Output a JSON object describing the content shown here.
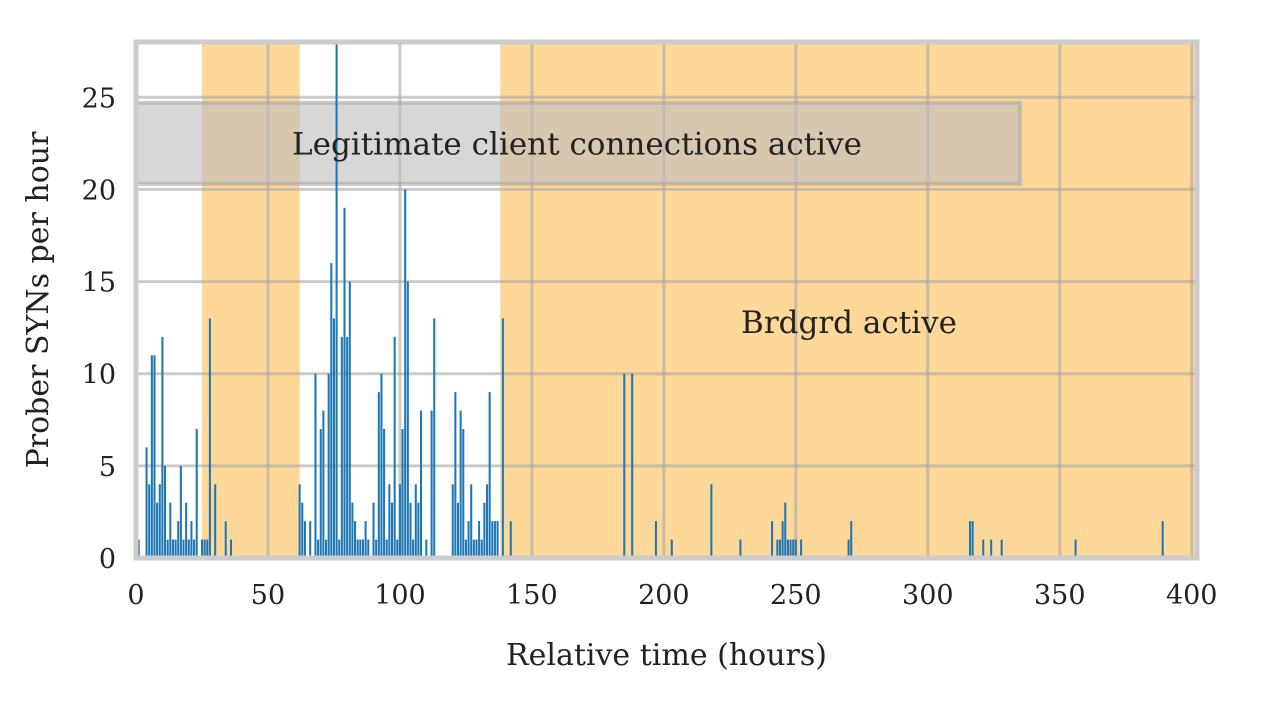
{
  "chart_data": {
    "type": "bar",
    "xlabel": "Relative time (hours)",
    "ylabel": "Prober SYNs per hour",
    "xlim": [
      0,
      402
    ],
    "ylim": [
      0,
      28
    ],
    "xticks": [
      0,
      50,
      100,
      150,
      200,
      250,
      300,
      350,
      400
    ],
    "yticks": [
      0,
      5,
      10,
      15,
      20,
      25
    ],
    "grid": true,
    "bar_color": "#1f77b4",
    "shade_color": "#fdb846",
    "legit_color": "#bdbdbd",
    "active_periods": [
      [
        25,
        62
      ],
      [
        138,
        402
      ]
    ],
    "legit_band": {
      "x": [
        0,
        335
      ],
      "y": [
        20.3,
        24.7
      ]
    },
    "annotations": {
      "legit": "Legitimate client connections active",
      "brdgrd": "Brdgrd active"
    },
    "x": [
      1,
      4,
      5,
      6,
      7,
      8,
      9,
      10,
      11,
      12,
      13,
      14,
      15,
      16,
      17,
      18,
      19,
      20,
      21,
      22,
      23,
      25,
      26,
      27,
      28,
      30,
      34,
      36,
      62,
      63,
      64,
      66,
      68,
      69,
      70,
      71,
      72,
      73,
      74,
      75,
      76,
      77,
      78,
      79,
      80,
      81,
      82,
      83,
      84,
      85,
      86,
      87,
      88,
      90,
      91,
      92,
      93,
      94,
      95,
      96,
      97,
      98,
      99,
      100,
      101,
      102,
      103,
      104,
      105,
      106,
      107,
      108,
      110,
      112,
      113,
      120,
      121,
      122,
      123,
      124,
      125,
      126,
      127,
      128,
      129,
      130,
      131,
      132,
      133,
      134,
      135,
      136,
      137,
      139,
      142,
      185,
      188,
      197,
      203,
      218,
      229,
      241,
      243,
      244,
      245,
      246,
      247,
      248,
      249,
      250,
      252,
      270,
      271,
      316,
      317,
      321,
      324,
      328,
      356,
      389
    ],
    "values": [
      1,
      6,
      4,
      11,
      11,
      3,
      4,
      12,
      5,
      1,
      3,
      1,
      1,
      2,
      5,
      1,
      3,
      1,
      2,
      1,
      7,
      1,
      1,
      1,
      13,
      4,
      2,
      1,
      4,
      3,
      2,
      2,
      10,
      1,
      7,
      8,
      1,
      10,
      16,
      13,
      28,
      1,
      12,
      19,
      12,
      15,
      3,
      2,
      1,
      1,
      1,
      2,
      1,
      3,
      1,
      9,
      10,
      7,
      1,
      4,
      3,
      12,
      1,
      4,
      7,
      20,
      15,
      3,
      1,
      4,
      3,
      8,
      1,
      8,
      13,
      4,
      9,
      3,
      8,
      7,
      1,
      2,
      4,
      1,
      1,
      2,
      1,
      3,
      4,
      9,
      2,
      2,
      2,
      13,
      2,
      10,
      10,
      2,
      1,
      4,
      1,
      2,
      1,
      1,
      2,
      3,
      1,
      1,
      1,
      1,
      1,
      1,
      2,
      2,
      2,
      1,
      1,
      1,
      1,
      2
    ]
  }
}
